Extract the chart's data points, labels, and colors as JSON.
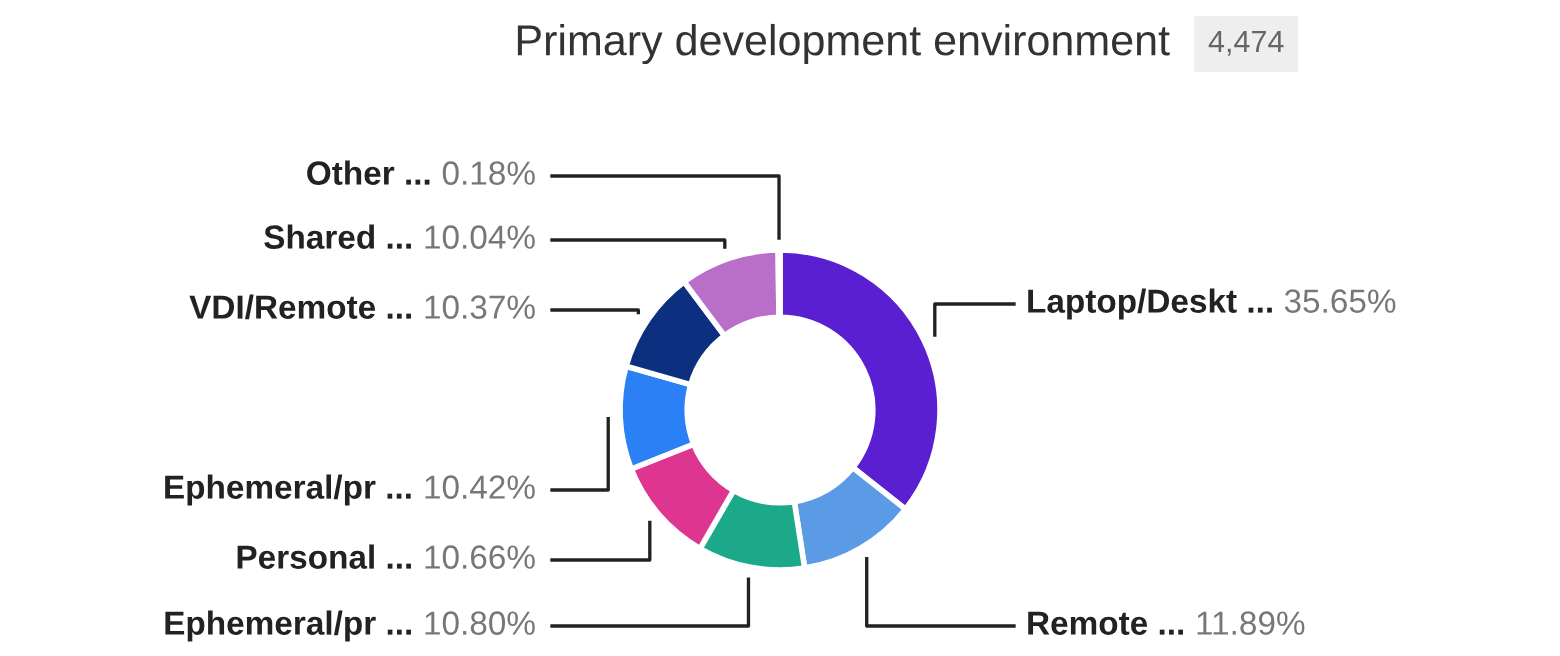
{
  "chart_data": {
    "type": "donut",
    "title": "Primary development environment",
    "annotations": [
      "4,474"
    ],
    "categories": [
      "Laptop/Deskt ...",
      "Remote ...",
      "Ephemeral/pr ...",
      "Personal ...",
      "Ephemeral/pr ...",
      "VDI/Remote ...",
      "Shared ...",
      "Other ..."
    ],
    "values": [
      35.65,
      11.89,
      10.8,
      10.66,
      10.42,
      10.37,
      10.04,
      0.18
    ],
    "colors": [
      "#5a1fd0",
      "#5b9be6",
      "#1ba98a",
      "#de3590",
      "#2b80f5",
      "#0c2f80",
      "#b96fc7",
      "#8a8a8a"
    ],
    "value_labels": [
      "35.65%",
      "11.89%",
      "10.80%",
      "10.66%",
      "10.42%",
      "10.37%",
      "10.04%",
      "0.18%"
    ]
  }
}
